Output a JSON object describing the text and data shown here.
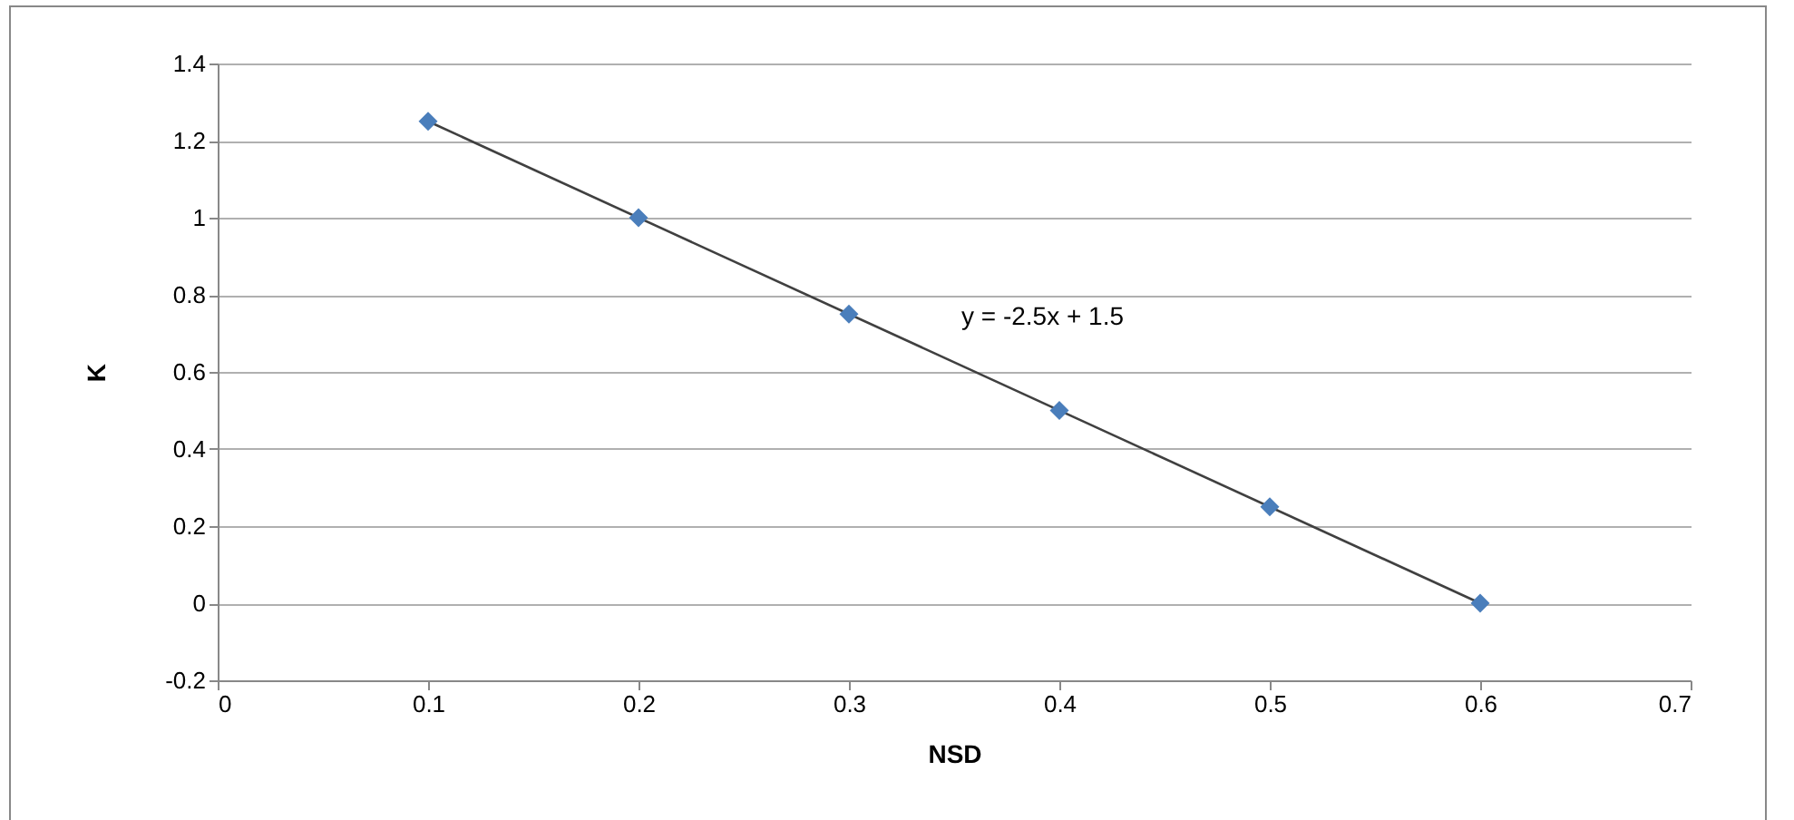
{
  "chart_data": {
    "type": "scatter",
    "xlabel": "NSD",
    "ylabel": "K",
    "x": [
      0.1,
      0.2,
      0.3,
      0.4,
      0.5,
      0.6
    ],
    "series": [
      {
        "color": "#4a7ebb",
        "marker": "diamond",
        "values": [
          1.25,
          1,
          0.75,
          0.5,
          0.25,
          0
        ]
      },
      {
        "type": "line",
        "color": "#404040",
        "x": [
          0.1,
          0.6
        ],
        "values": [
          1.25,
          0
        ]
      }
    ],
    "xlim": [
      0,
      0.7
    ],
    "xticks": [
      0,
      0.1,
      0.2,
      0.3,
      0.4,
      0.5,
      0.6,
      0.7
    ],
    "ylim": [
      -0.2,
      1.4
    ],
    "yticks": [
      -0.2,
      0,
      0.2,
      0.4,
      0.6,
      0.8,
      1,
      1.2,
      1.4
    ],
    "grid": "y",
    "annotations": [
      "y = -2.5x + 1.5"
    ]
  }
}
